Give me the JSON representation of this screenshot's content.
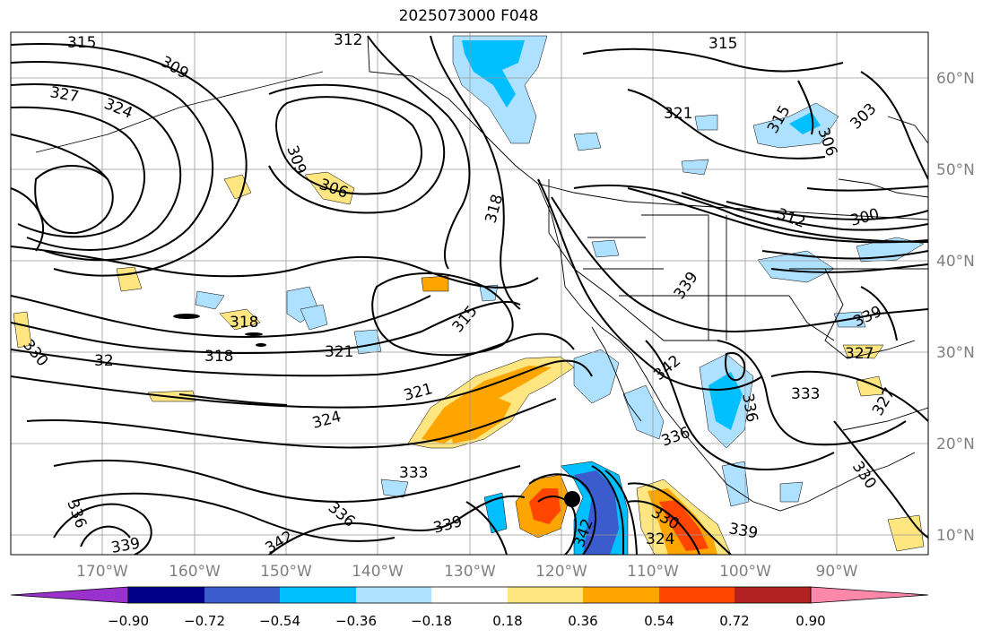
{
  "title": "2025073000 F048",
  "latitudes": [
    "60°N",
    "50°N",
    "40°N",
    "30°N",
    "20°N",
    "10°N"
  ],
  "longitudes": [
    "170°W",
    "160°W",
    "150°W",
    "140°W",
    "130°W",
    "120°W",
    "110°W",
    "100°W",
    "90°W"
  ],
  "colorbar": {
    "ticks": [
      "−0.90",
      "−0.72",
      "−0.54",
      "−0.36",
      "−0.18",
      "0.18",
      "0.36",
      "0.54",
      "0.72",
      "0.90"
    ],
    "colors": [
      "#9932cc",
      "#00008b",
      "#3a5ccc",
      "#00bfff",
      "#aee1ff",
      "#ffffff",
      "#ffe680",
      "#ffa500",
      "#ff4500",
      "#b22222",
      "#ff88aa"
    ]
  },
  "contour_labels": [
    "315",
    "309",
    "312",
    "315",
    "327",
    "324",
    "321",
    "306",
    "309",
    "318",
    "303",
    "306",
    "315",
    "312",
    "300",
    "330",
    "318",
    "318",
    "321",
    "315",
    "339",
    "339",
    "32",
    "321",
    "324",
    "333",
    "342",
    "336",
    "333",
    "327",
    "330",
    "336",
    "339",
    "342",
    "324",
    "339",
    "330",
    "336",
    "336",
    "339",
    "342",
    "327"
  ],
  "cyclone_marker": "hurricane-center-dot"
}
